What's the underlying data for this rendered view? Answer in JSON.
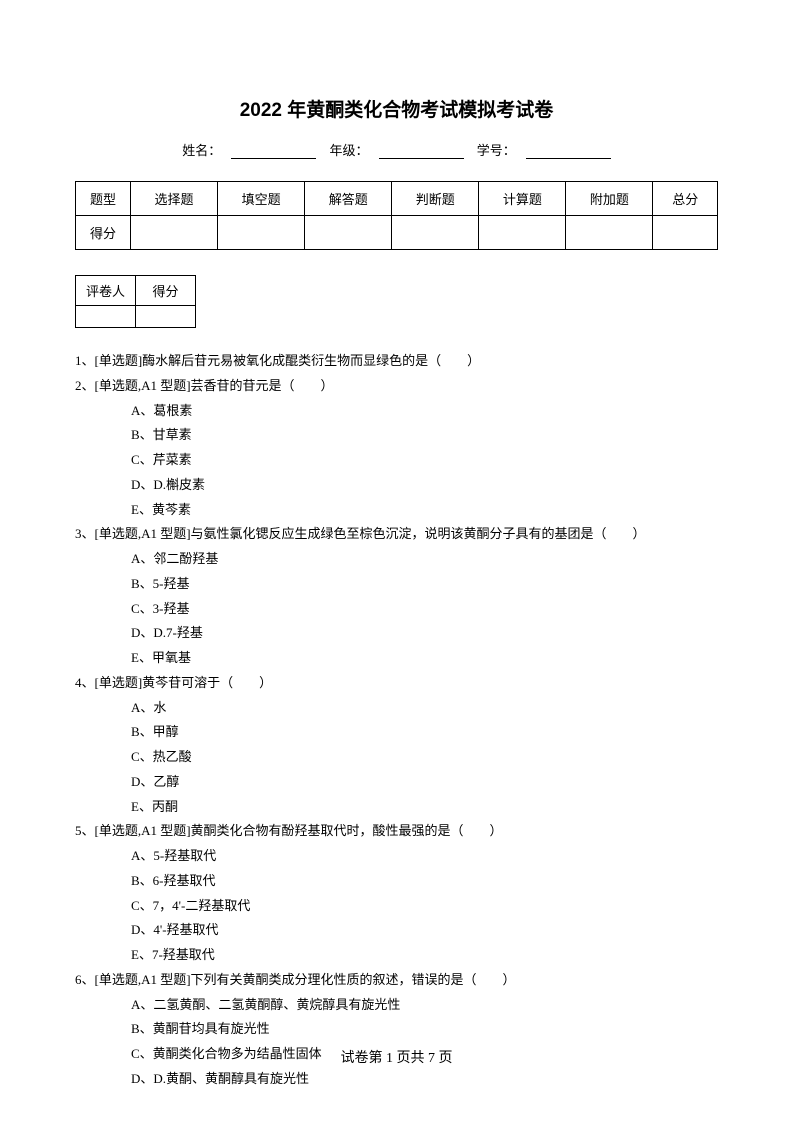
{
  "title": "2022 年黄酮类化合物考试模拟考试卷",
  "info": {
    "name_label": "姓名：",
    "grade_label": "年级：",
    "id_label": "学号："
  },
  "score_table": {
    "row1": [
      "题型",
      "选择题",
      "填空题",
      "解答题",
      "判断题",
      "计算题",
      "附加题",
      "总分"
    ],
    "row2_label": "得分"
  },
  "grader_table": {
    "col1": "评卷人",
    "col2": "得分"
  },
  "questions": [
    {
      "num": "1、",
      "text": "[单选题]酶水解后苷元易被氧化成醌类衍生物而显绿色的是（　　）"
    },
    {
      "num": "2、",
      "text": "[单选题,A1 型题]芸香苷的苷元是（　　）",
      "options": [
        "A、葛根素",
        "B、甘草素",
        "C、芹菜素",
        "D、D.槲皮素",
        "E、黄芩素"
      ]
    },
    {
      "num": "3、",
      "text": "[单选题,A1 型题]与氨性氯化锶反应生成绿色至棕色沉淀，说明该黄酮分子具有的基团是（　　）",
      "options": [
        "A、邻二酚羟基",
        "B、5-羟基",
        "C、3-羟基",
        "D、D.7-羟基",
        "E、甲氧基"
      ]
    },
    {
      "num": "4、",
      "text": "[单选题]黄芩苷可溶于（　　）",
      "options": [
        "A、水",
        "B、甲醇",
        "C、热乙酸",
        "D、乙醇",
        "E、丙酮"
      ]
    },
    {
      "num": "5、",
      "text": "[单选题,A1 型题]黄酮类化合物有酚羟基取代时，酸性最强的是（　　）",
      "options": [
        "A、5-羟基取代",
        "B、6-羟基取代",
        "C、7，4'-二羟基取代",
        "D、4'-羟基取代",
        "E、7-羟基取代"
      ]
    },
    {
      "num": "6、",
      "text": "[单选题,A1 型题]下列有关黄酮类成分理化性质的叙述，错误的是（　　）",
      "options": [
        "A、二氢黄酮、二氢黄酮醇、黄烷醇具有旋光性",
        "B、黄酮苷均具有旋光性",
        "C、黄酮类化合物多为结晶性固体",
        "D、D.黄酮、黄酮醇具有旋光性"
      ]
    }
  ],
  "footer": "试卷第 1 页共 7 页"
}
